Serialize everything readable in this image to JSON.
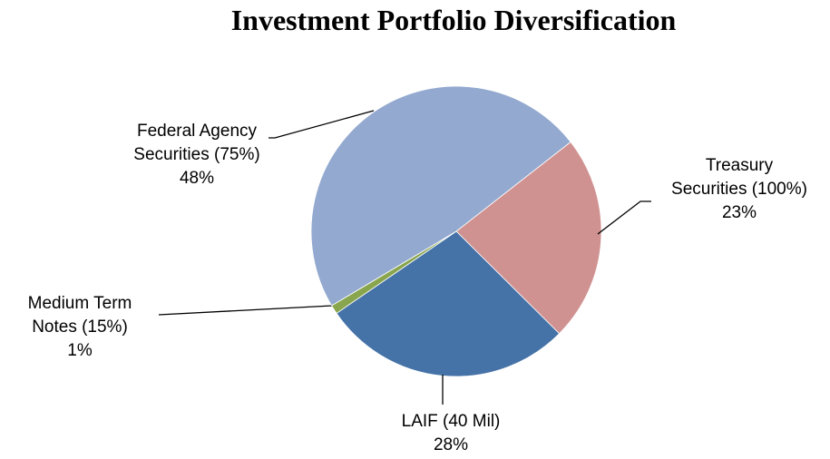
{
  "chart_data": {
    "type": "pie",
    "title": "Investment Portfolio Diversification",
    "categories": [
      "Treasury Securities (100%)",
      "LAIF (40 Mil)",
      "Medium Term Notes (15%)",
      "Federal Agency Securities (75%)"
    ],
    "values": [
      23,
      28,
      1,
      48
    ],
    "value_labels": [
      "23%",
      "28%",
      "1%",
      "48%"
    ],
    "colors": [
      "#d09291",
      "#4572a7",
      "#89a54e",
      "#93a9cf"
    ]
  }
}
